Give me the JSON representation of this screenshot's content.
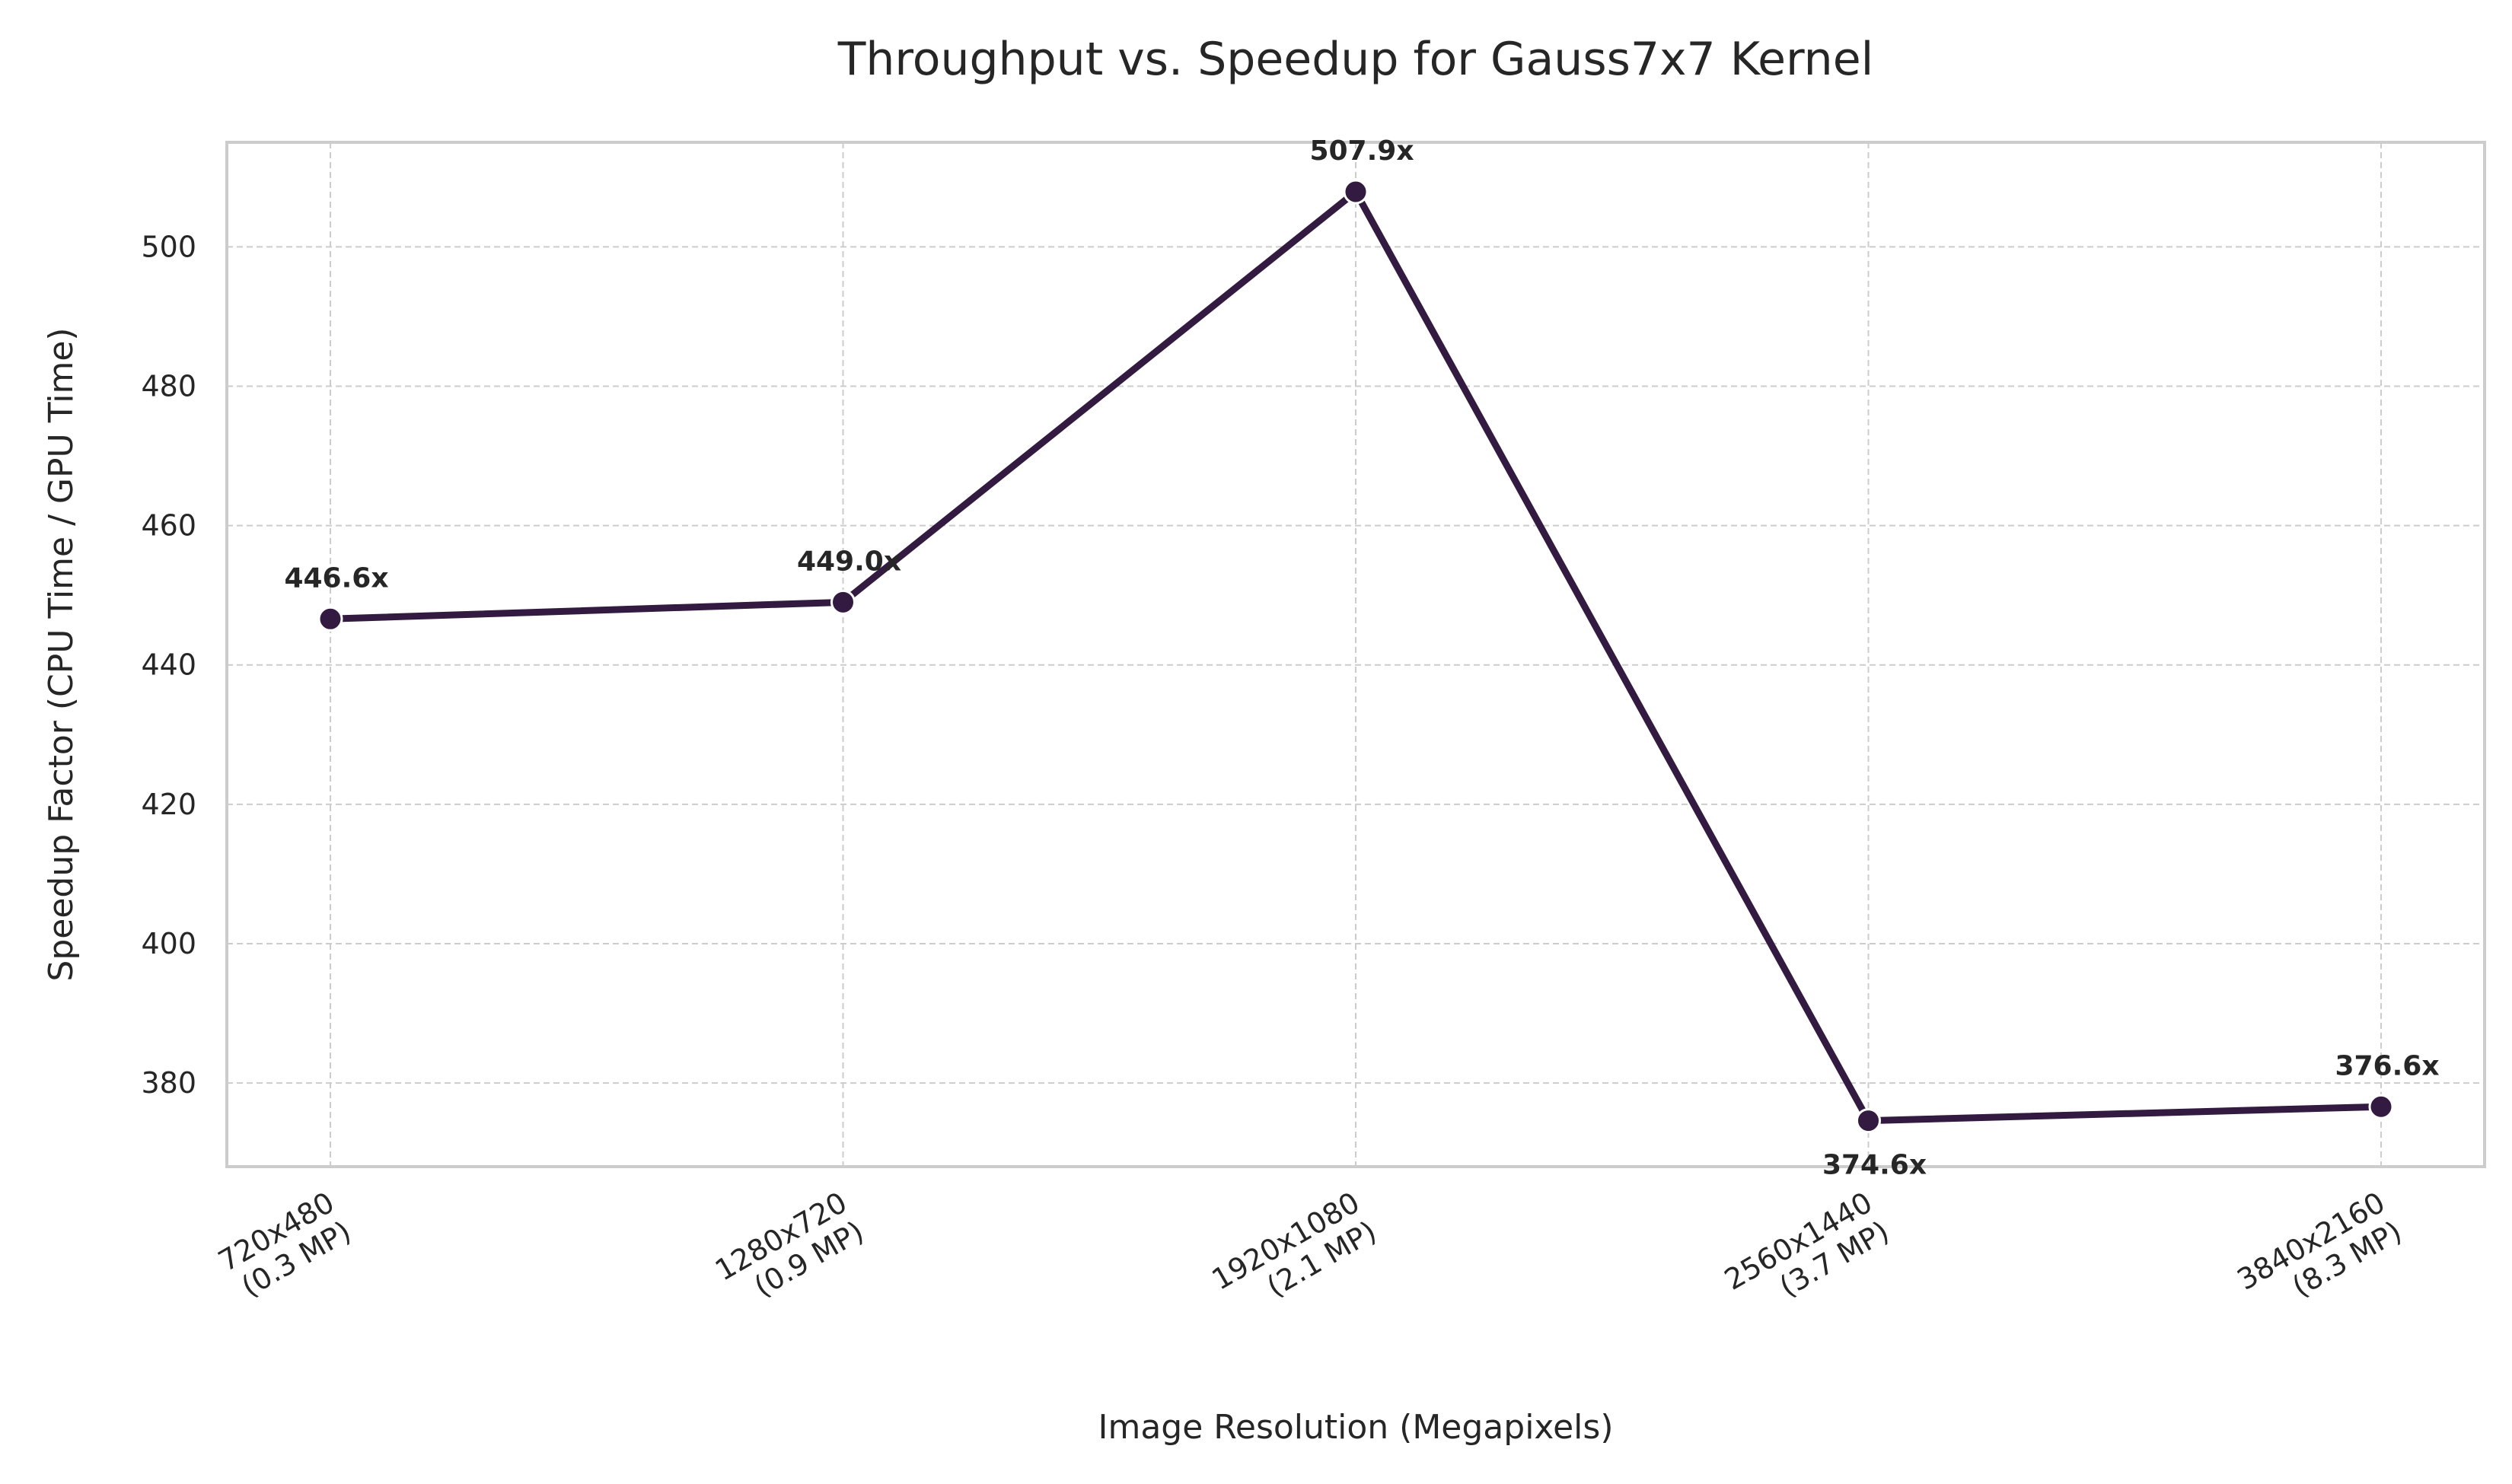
{
  "chart_data": {
    "type": "line",
    "title": "Throughput vs. Speedup for Gauss7x7 Kernel",
    "xlabel": "Image Resolution (Megapixels)",
    "ylabel": "Speedup Factor (CPU Time / GPU Time)",
    "categories": [
      [
        "720x480",
        "(0.3 MP)"
      ],
      [
        "1280x720",
        "(0.9 MP)"
      ],
      [
        "1920x1080",
        "(2.1 MP)"
      ],
      [
        "2560x1440",
        "(3.7 MP)"
      ],
      [
        "3840x2160",
        "(8.3 MP)"
      ]
    ],
    "values": [
      446.6,
      449.0,
      507.9,
      374.6,
      376.6
    ],
    "data_labels": [
      "446.6x",
      "449.0x",
      "507.9x",
      "374.6x",
      "376.6x"
    ],
    "label_positions": [
      "above",
      "above",
      "above",
      "below",
      "above"
    ],
    "ylim": [
      368,
      515
    ],
    "yticks": [
      380,
      400,
      420,
      440,
      460,
      480,
      500
    ],
    "grid": true,
    "line_color": "#331a40",
    "marker_edge_color": "#ffffff",
    "legend": null
  }
}
